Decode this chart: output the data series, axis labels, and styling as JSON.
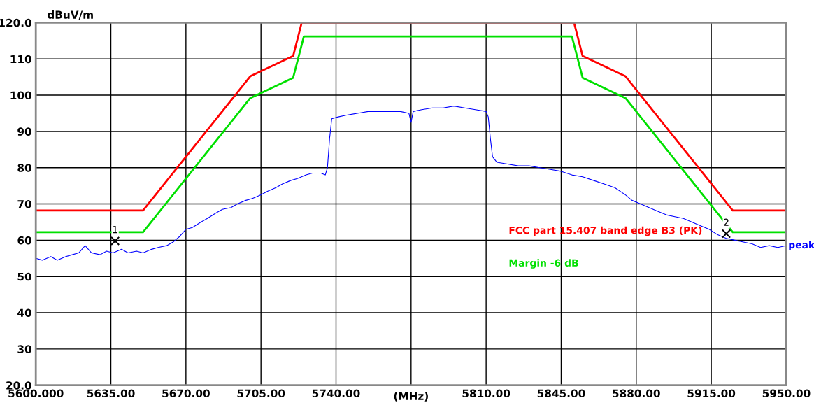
{
  "chart_data": {
    "type": "line",
    "ylabel": "dBuV/m",
    "xlabel": "(MHz)",
    "xlim": [
      5600,
      5950
    ],
    "ylim": [
      20,
      120
    ],
    "xticks": [
      {
        "value": 5600,
        "label": "5600.000"
      },
      {
        "value": 5635,
        "label": "5635.00"
      },
      {
        "value": 5670,
        "label": "5670.00"
      },
      {
        "value": 5705,
        "label": "5705.00"
      },
      {
        "value": 5740,
        "label": "5740.00"
      },
      {
        "value": 5775,
        "label": null
      },
      {
        "value": 5810,
        "label": "5810.00"
      },
      {
        "value": 5845,
        "label": "5845.00"
      },
      {
        "value": 5880,
        "label": "5880.00"
      },
      {
        "value": 5915,
        "label": "5915.00"
      },
      {
        "value": 5950,
        "label": "5950.00"
      }
    ],
    "yticks": [
      {
        "value": 20,
        "label": "20.0"
      },
      30,
      40,
      50,
      60,
      70,
      80,
      90,
      100,
      110,
      {
        "value": 120,
        "label": "120.0"
      }
    ],
    "grid": true,
    "legend": false,
    "marker": "none",
    "line_style": "solid",
    "series": [
      {
        "name": "FCC part 15.407 band edge B3 (PK)",
        "color": "#ff0000",
        "x": [
          5600,
          5650,
          5700,
          5720,
          5724,
          5851,
          5855,
          5875,
          5925,
          5950
        ],
        "values": [
          68.2,
          68.2,
          105.2,
          110.8,
          120,
          120,
          110.8,
          105.2,
          68.2,
          68.2
        ]
      },
      {
        "name": "Margin -6 dB",
        "color": "#00e000",
        "x": [
          5600,
          5650,
          5700,
          5720,
          5725,
          5850,
          5855,
          5875,
          5925,
          5950
        ],
        "values": [
          62.2,
          62.2,
          99.2,
          104.8,
          116.2,
          116.2,
          104.8,
          99.2,
          62.2,
          62.2
        ]
      },
      {
        "name": "peak",
        "color": "#0000ff",
        "x": [
          5600,
          5603,
          5607,
          5610,
          5614,
          5617,
          5620,
          5623,
          5626,
          5630,
          5633,
          5636,
          5640,
          5643,
          5647,
          5650,
          5654,
          5657,
          5661,
          5664,
          5667,
          5670,
          5673,
          5677,
          5680,
          5684,
          5687,
          5691,
          5694,
          5698,
          5701,
          5705,
          5708,
          5712,
          5715,
          5719,
          5722,
          5726,
          5729,
          5733,
          5735,
          5736,
          5737,
          5738,
          5741,
          5745,
          5750,
          5755,
          5760,
          5765,
          5770,
          5774,
          5775,
          5776,
          5780,
          5785,
          5790,
          5795,
          5800,
          5805,
          5810,
          5811,
          5812,
          5813,
          5815,
          5820,
          5825,
          5830,
          5835,
          5840,
          5845,
          5850,
          5855,
          5860,
          5865,
          5870,
          5875,
          5878,
          5882,
          5886,
          5890,
          5894,
          5898,
          5902,
          5906,
          5910,
          5914,
          5918,
          5922,
          5926,
          5930,
          5934,
          5938,
          5942,
          5946,
          5950
        ],
        "values": [
          55,
          54.5,
          55.5,
          54.5,
          55.5,
          56,
          56.5,
          58.5,
          56.5,
          56,
          57,
          56.5,
          57.5,
          56.5,
          57,
          56.5,
          57.5,
          58,
          58.5,
          59.5,
          61,
          63,
          63.5,
          65,
          66,
          67.5,
          68.5,
          69,
          70,
          71,
          71.5,
          72.5,
          73.5,
          74.5,
          75.5,
          76.5,
          77,
          78,
          78.5,
          78.5,
          78,
          80,
          88,
          93.5,
          94,
          94.5,
          95,
          95.5,
          95.5,
          95.5,
          95.5,
          95,
          92.5,
          95.5,
          96,
          96.5,
          96.5,
          97,
          96.5,
          96,
          95.5,
          94,
          88,
          83,
          81.5,
          81,
          80.5,
          80.5,
          80,
          79.5,
          79,
          78,
          77.5,
          76.5,
          75.5,
          74.5,
          72.5,
          71,
          70,
          69,
          68,
          67,
          66.5,
          66,
          65,
          64,
          63,
          61.5,
          60.5,
          60,
          59.5,
          59,
          58,
          58.5,
          58,
          58.5
        ]
      },
      {
        "type": "scatter",
        "marker": "cross",
        "color": "#000000",
        "x": [
          5637,
          5922
        ],
        "values": [
          59.8,
          61.8
        ]
      }
    ],
    "annotations": [
      {
        "text": "1",
        "x": 5637,
        "y": 59.8
      },
      {
        "text": "2",
        "x": 5922,
        "y": 61.8
      }
    ]
  }
}
